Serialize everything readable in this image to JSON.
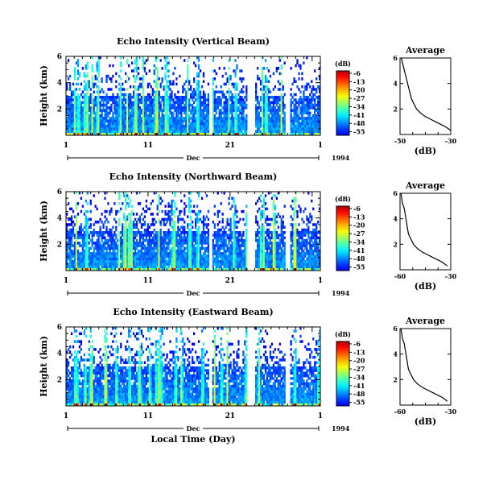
{
  "figure": {
    "bottom_xlabel": "Local Time (Day)"
  },
  "colorbar": {
    "unit": "(dB)",
    "ticks": [
      -6,
      -13,
      -20,
      -27,
      -34,
      -41,
      -48,
      -55
    ]
  },
  "chart_data": [
    {
      "type": "heatmap",
      "title": "Echo Intensity (Vertical Beam)",
      "ylabel": "Height (km)",
      "xlabel": "",
      "x_ticks": [
        "1",
        "11",
        "21",
        "1"
      ],
      "x_month": "Dec",
      "x_year": "1994",
      "ylim": [
        0,
        6
      ],
      "y_ticks": [
        "6",
        "4",
        "2"
      ],
      "zlim": [
        -55,
        -6
      ],
      "average_profile": {
        "title": "Average",
        "xlabel": "(dB)",
        "xlim": [
          -50,
          -30
        ],
        "x_ticks": [
          "-50",
          "-30"
        ],
        "ylim": [
          0,
          6
        ],
        "y_ticks": [
          "6",
          "4",
          "2"
        ],
        "x": [
          -49.5,
          -49.0,
          -48.5,
          -48.0,
          -47.5,
          -47.0,
          -46.5,
          -46.0,
          -45.5,
          -44.5,
          -43.5,
          -42.0,
          -40.0,
          -38.0,
          -36.0,
          -34.0,
          -32.0,
          -30.5,
          -30.0
        ],
        "y": [
          6.0,
          5.6,
          5.2,
          4.8,
          4.4,
          4.0,
          3.6,
          3.2,
          2.8,
          2.4,
          2.0,
          1.7,
          1.4,
          1.2,
          1.0,
          0.8,
          0.6,
          0.4,
          0.3
        ]
      }
    },
    {
      "type": "heatmap",
      "title": "Echo Intensity (Northward Beam)",
      "ylabel": "Height (km)",
      "xlabel": "",
      "x_ticks": [
        "1",
        "11",
        "21",
        "1"
      ],
      "x_month": "Dec",
      "x_year": "1994",
      "ylim": [
        0,
        6
      ],
      "y_ticks": [
        "6",
        "4",
        "2"
      ],
      "zlim": [
        -55,
        -6
      ],
      "average_profile": {
        "title": "Average",
        "xlabel": "(dB)",
        "xlim": [
          -60,
          -30
        ],
        "x_ticks": [
          "-60",
          "-30"
        ],
        "ylim": [
          0,
          6
        ],
        "y_ticks": [
          "6",
          "4",
          "2"
        ],
        "x": [
          -59.5,
          -59.0,
          -58.5,
          -57.5,
          -57.0,
          -56.5,
          -56.0,
          -55.5,
          -55.0,
          -53.5,
          -52.0,
          -50.0,
          -47.0,
          -44.0,
          -41.0,
          -38.0,
          -35.0,
          -33.0,
          -32.0
        ],
        "y": [
          6.0,
          5.6,
          5.2,
          4.8,
          4.4,
          4.0,
          3.6,
          3.2,
          2.8,
          2.4,
          2.0,
          1.7,
          1.4,
          1.2,
          1.0,
          0.8,
          0.6,
          0.4,
          0.3
        ]
      }
    },
    {
      "type": "heatmap",
      "title": "Echo Intensity (Eastward Beam)",
      "ylabel": "Height (km)",
      "xlabel": "Local Time (Day)",
      "x_ticks": [
        "1",
        "11",
        "21",
        "1"
      ],
      "x_month": "Dec",
      "x_year": "1994",
      "ylim": [
        0,
        6
      ],
      "y_ticks": [
        "6",
        "4",
        "2"
      ],
      "zlim": [
        -55,
        -6
      ],
      "average_profile": {
        "title": "Average",
        "xlabel": "(dB)",
        "xlim": [
          -60,
          -30
        ],
        "x_ticks": [
          "-60",
          "-30"
        ],
        "ylim": [
          0,
          6
        ],
        "y_ticks": [
          "6",
          "4",
          "2"
        ],
        "x": [
          -59.5,
          -59.0,
          -58.5,
          -57.5,
          -57.0,
          -56.5,
          -56.0,
          -55.5,
          -55.0,
          -53.5,
          -52.0,
          -50.0,
          -47.0,
          -44.0,
          -41.0,
          -38.0,
          -35.0,
          -33.0,
          -32.0
        ],
        "y": [
          6.0,
          5.6,
          5.2,
          4.8,
          4.4,
          4.0,
          3.6,
          3.2,
          2.8,
          2.4,
          2.0,
          1.7,
          1.4,
          1.2,
          1.0,
          0.8,
          0.6,
          0.4,
          0.3
        ]
      }
    }
  ]
}
